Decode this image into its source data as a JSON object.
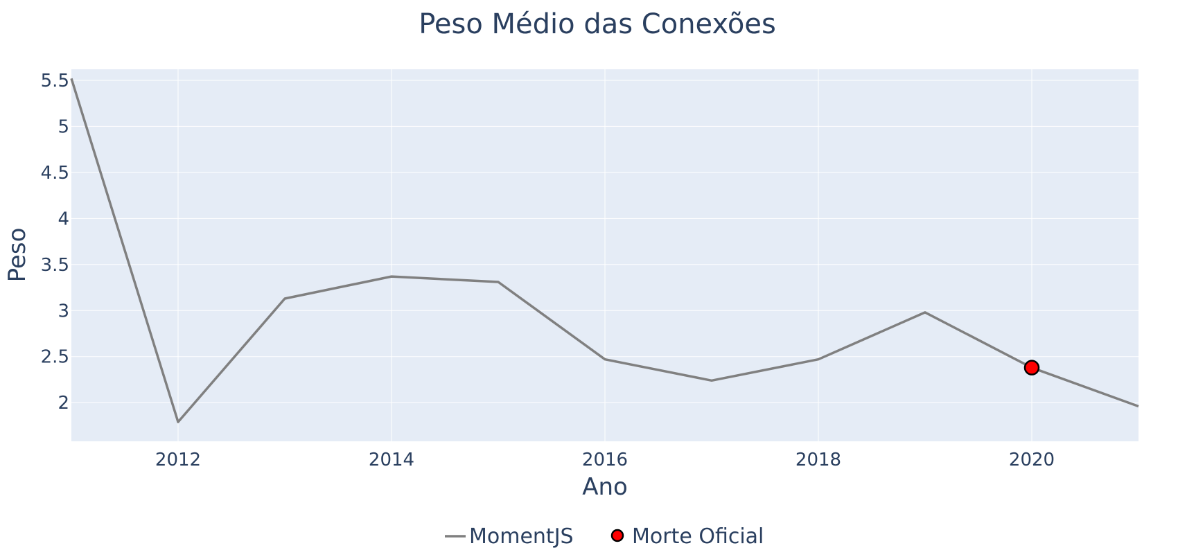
{
  "chart_data": {
    "type": "line",
    "title": "Peso Médio das Conexões",
    "xlabel": "Ano",
    "ylabel": "Peso",
    "xlim": [
      2011,
      2021
    ],
    "ylim": [
      1.58,
      5.62
    ],
    "x_ticks": [
      2012,
      2014,
      2016,
      2018,
      2020
    ],
    "x_tick_labels": [
      "2012",
      "2014",
      "2016",
      "2018",
      "2020"
    ],
    "y_ticks": [
      2,
      2.5,
      3,
      3.5,
      4,
      4.5,
      5,
      5.5
    ],
    "y_tick_labels": [
      "2",
      "2.5",
      "3",
      "3.5",
      "4",
      "4.5",
      "5",
      "5.5"
    ],
    "grid": true,
    "legend_position": "bottom-center",
    "series": [
      {
        "name": "MomentJS",
        "mode": "lines",
        "color": "#808080",
        "x": [
          2011,
          2012,
          2013,
          2014,
          2015,
          2016,
          2017,
          2018,
          2019,
          2020,
          2021
        ],
        "y": [
          5.52,
          1.79,
          3.13,
          3.37,
          3.31,
          2.47,
          2.24,
          2.47,
          2.98,
          2.38,
          1.96
        ]
      },
      {
        "name": "Morte Oficial",
        "mode": "markers",
        "color": "#ff0000",
        "edge_color": "#000000",
        "x": [
          2020
        ],
        "y": [
          2.38
        ]
      }
    ]
  },
  "colors": {
    "plot_background": "#e5ecf6",
    "gridline": "#ffffff",
    "text": "#2a3f5f",
    "line": "#808080",
    "marker_fill": "#ff0000",
    "marker_edge": "#000000"
  }
}
